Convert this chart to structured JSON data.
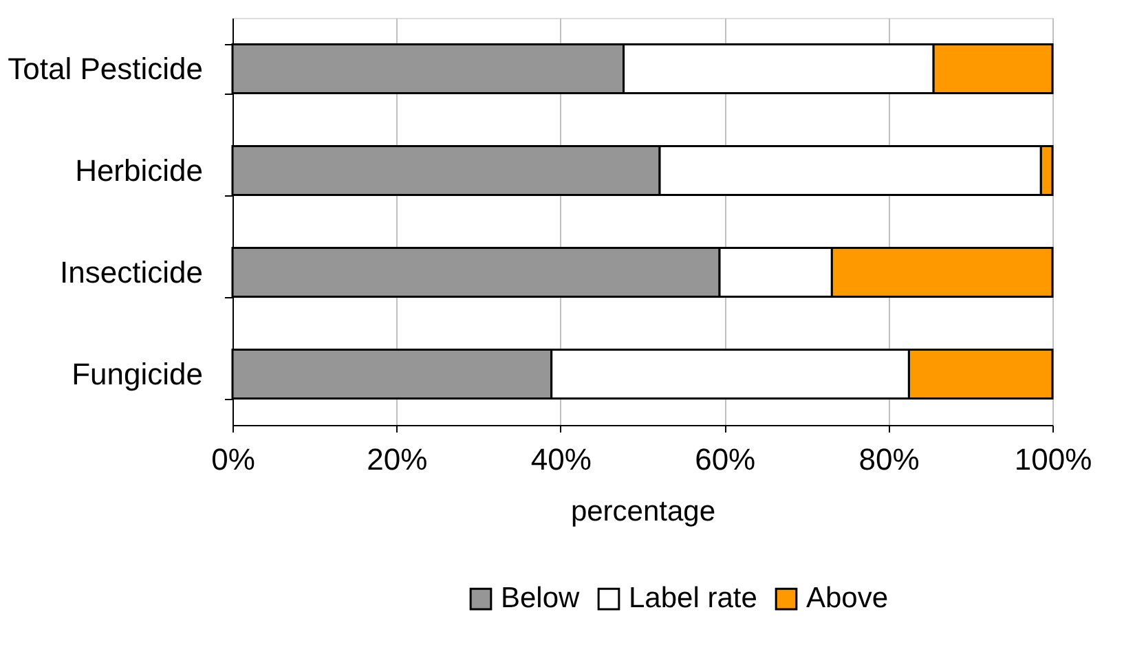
{
  "chart_data": {
    "type": "bar",
    "orientation": "horizontal",
    "stacked": true,
    "xlabel": "percentage",
    "categories": [
      "Total Pesticide",
      "Herbicide",
      "Insecticide",
      "Fungicide"
    ],
    "series": [
      {
        "name": "Below",
        "color": "#969696",
        "values": [
          47.7,
          52.1,
          59.4,
          38.9
        ]
      },
      {
        "name": "Label rate",
        "color": "#ffffff",
        "values": [
          37.8,
          46.5,
          13.7,
          43.6
        ]
      },
      {
        "name": "Above",
        "color": "#ff9900",
        "values": [
          14.5,
          1.4,
          26.9,
          17.5
        ]
      }
    ],
    "xlim": [
      0,
      100
    ],
    "xticks": [
      {
        "value": 0,
        "label": "0%"
      },
      {
        "value": 20,
        "label": "20%"
      },
      {
        "value": 40,
        "label": "40%"
      },
      {
        "value": 60,
        "label": "60%"
      },
      {
        "value": 80,
        "label": "80%"
      },
      {
        "value": 100,
        "label": "100%"
      }
    ],
    "grid": "x",
    "legend": "bottom"
  }
}
